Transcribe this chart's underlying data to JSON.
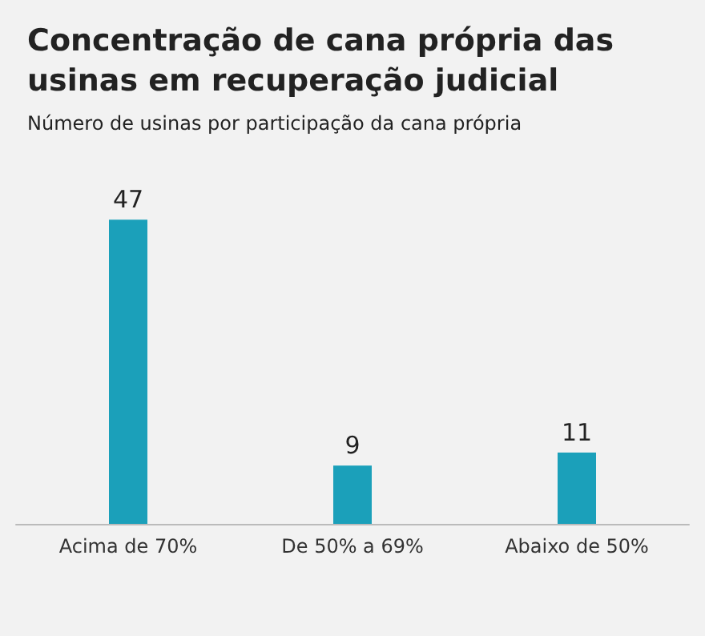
{
  "chart_data": {
    "type": "bar",
    "title": "Concentração de cana própria das usinas em recuperação judicial",
    "subtitle": "Número de usinas por participação da cana própria",
    "categories": [
      "Acima de 70%",
      "De 50% a 69%",
      "Abaixo de 50%"
    ],
    "values": [
      47,
      9,
      11
    ],
    "color": "#1ba0ba",
    "data_labels": true
  }
}
